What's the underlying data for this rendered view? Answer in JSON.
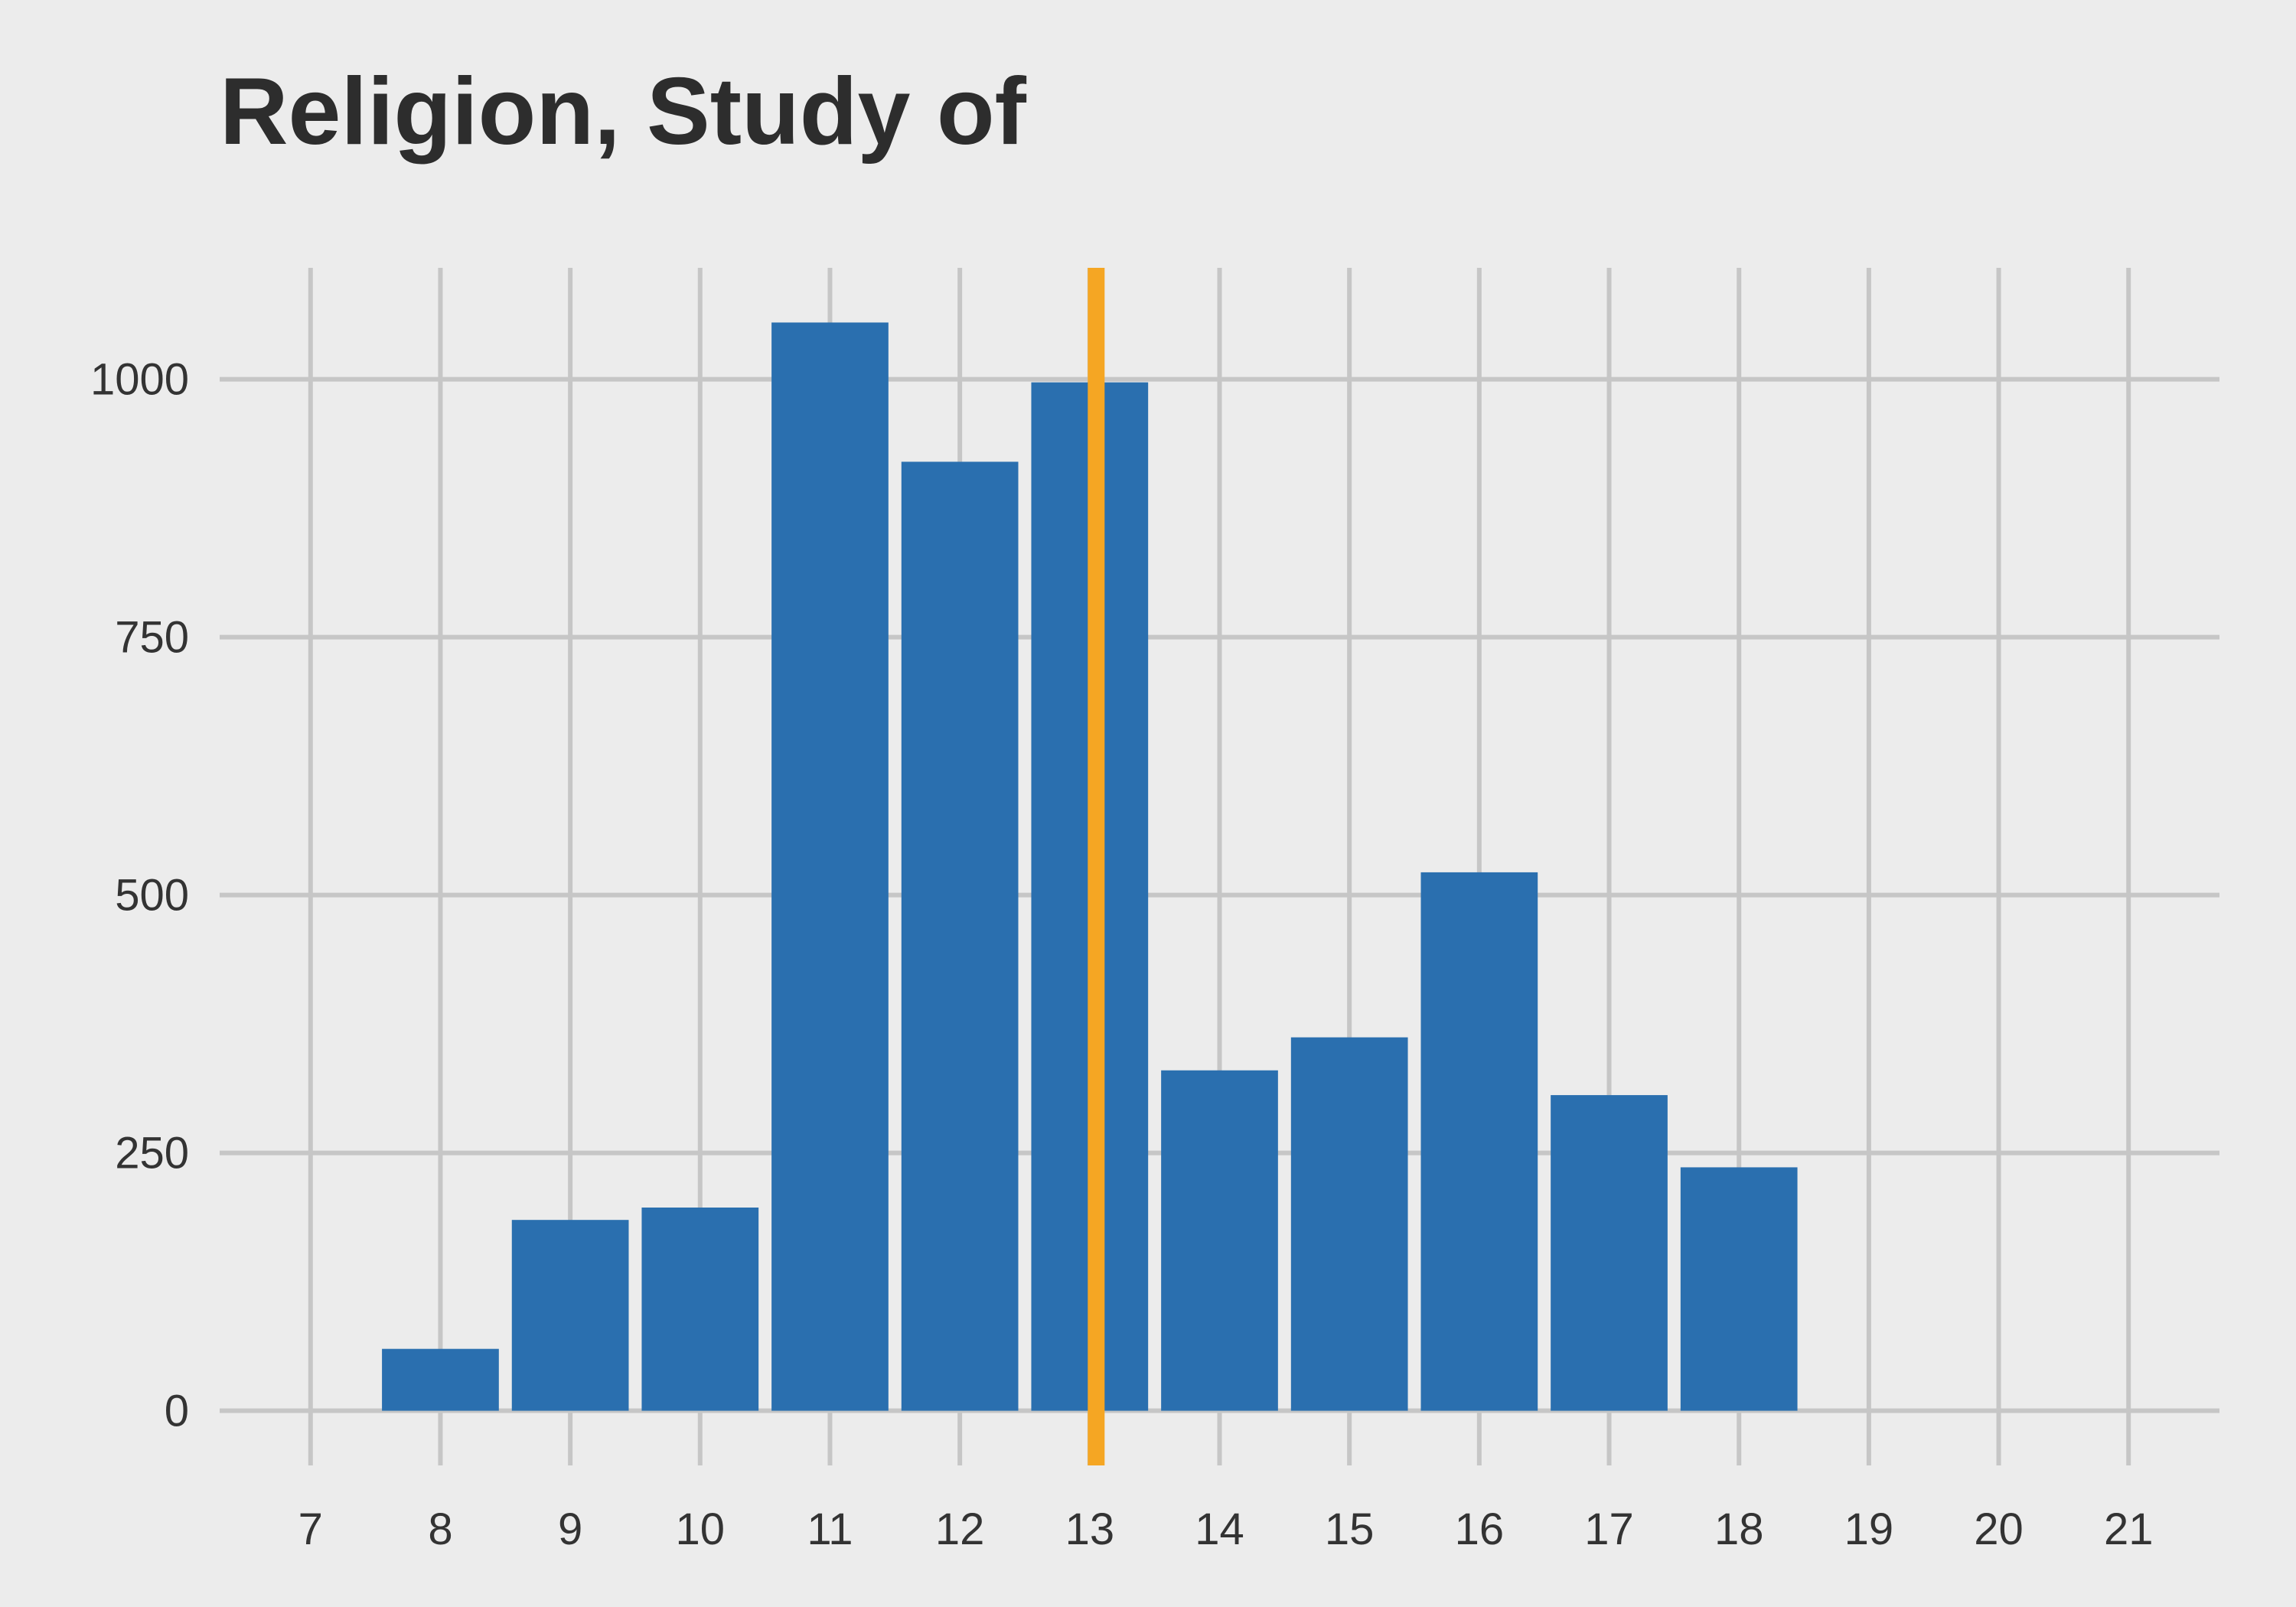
{
  "chart_data": {
    "type": "bar",
    "title": "Religion, Study of",
    "xlabel": "",
    "ylabel": "",
    "x": [
      8,
      9,
      10,
      11,
      12,
      13,
      14,
      15,
      16,
      17,
      18
    ],
    "values": [
      60,
      185,
      197,
      1055,
      920,
      997,
      330,
      362,
      522,
      306,
      236
    ],
    "xlim": [
      6.3,
      21.7
    ],
    "ylim": [
      -53,
      1108
    ],
    "xticks": [
      7,
      8,
      9,
      10,
      11,
      12,
      13,
      14,
      15,
      16,
      17,
      18,
      19,
      20,
      21
    ],
    "yticks": [
      0,
      250,
      500,
      750,
      1000
    ],
    "reference_line_x": 13.05,
    "grid": true,
    "legend": "none",
    "colors": {
      "bar": "#2a6faf",
      "reference_line": "#f5a623",
      "grid": "#c6c6c6",
      "background": "#ececec"
    }
  }
}
